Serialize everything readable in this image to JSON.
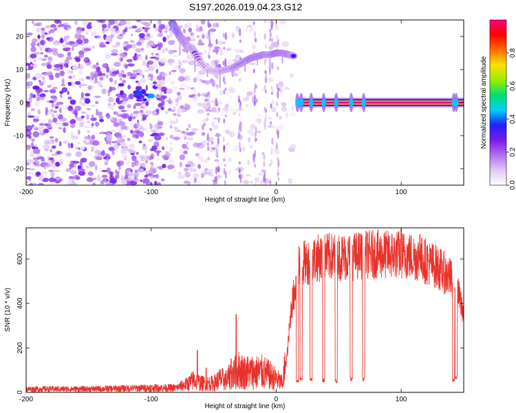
{
  "title": "S197.2026.019.04.23.G12",
  "colors": {
    "snr_line": "#e8322b",
    "colormap": [
      "#ffffff",
      "#e0c8f5",
      "#b070f0",
      "#7a1be8",
      "#2020ff",
      "#00d0ff",
      "#00e070",
      "#9aee00",
      "#ffe000",
      "#ff7000",
      "#ff0000",
      "#ff0080"
    ]
  },
  "chart_data": [
    {
      "type": "heatmap",
      "name": "spectrogram",
      "xlabel": "Height of straight line (km)",
      "ylabel": "Frequency (Hz)",
      "xlim": [
        -200,
        150
      ],
      "ylim": [
        -25,
        25
      ],
      "xticks": [
        -200,
        -100,
        0,
        100
      ],
      "xtick_labels": [
        "-200",
        "-100",
        "0",
        "100"
      ],
      "yticks": [
        -20,
        -10,
        0,
        10,
        20
      ],
      "ytick_labels": [
        "-20",
        "-10",
        "0",
        "10",
        "20"
      ],
      "colorbar": {
        "label": "Normalized spectral amplitude",
        "range": [
          0,
          1
        ],
        "ticks": [
          0.0,
          0.2,
          0.4,
          0.6,
          0.8
        ],
        "tick_labels": [
          "0.0",
          "0.2",
          "0.4",
          "0.6",
          "0.8"
        ]
      },
      "ridge": {
        "description_free_trace": true,
        "x": [
          -83,
          -80,
          -77,
          -74,
          -71,
          -68,
          -65,
          -60,
          -55,
          -50,
          -45,
          -40,
          -35,
          -30,
          -25,
          -20,
          -15,
          -10,
          -5,
          0,
          5,
          10,
          15
        ],
        "y": [
          24,
          22,
          20,
          18.5,
          17,
          16.5,
          15,
          12,
          10,
          9.5,
          9.5,
          10,
          10.5,
          11.5,
          12.5,
          13.5,
          14,
          14.5,
          14.5,
          15,
          15,
          14.5,
          14
        ],
        "amplitude": [
          0.5,
          0.4,
          0.4,
          0.35,
          0.35,
          0.3,
          0.3,
          0.2,
          0.2,
          0.25,
          0.25,
          0.3,
          0.3,
          0.35,
          0.35,
          0.4,
          0.4,
          0.4,
          0.35,
          0.45,
          0.4,
          0.4,
          0.3
        ]
      },
      "carrier": {
        "y": 0,
        "x_start": 17,
        "x_end": 150,
        "amplitude": 1.0
      },
      "cluster": {
        "x": -105,
        "y": 2,
        "amplitude": 0.4
      }
    },
    {
      "type": "line",
      "name": "snr",
      "xlabel": "Height of straight line (km)",
      "ylabel": "SNR (10 * v/v)",
      "xlim": [
        -200,
        150
      ],
      "ylim": [
        0,
        740
      ],
      "xticks": [
        -200,
        -100,
        0,
        100
      ],
      "xtick_labels": [
        "-200",
        "-100",
        "0",
        "100"
      ],
      "yticks": [
        0,
        200,
        400,
        600
      ],
      "ytick_labels": [
        "0",
        "200",
        "400",
        "600"
      ],
      "envelope": {
        "x": [
          -200,
          -150,
          -100,
          -80,
          -75,
          -70,
          -66,
          -60,
          -50,
          -45,
          -40,
          -35,
          -30,
          -25,
          -20,
          -10,
          0,
          5,
          9,
          12,
          15,
          18,
          22,
          30,
          40,
          50,
          60,
          70,
          80,
          90,
          100,
          110,
          120,
          130,
          140,
          145,
          150
        ],
        "y": [
          15,
          15,
          20,
          20,
          30,
          40,
          55,
          40,
          40,
          60,
          55,
          80,
          100,
          90,
          90,
          90,
          60,
          40,
          180,
          380,
          460,
          560,
          580,
          600,
          610,
          610,
          610,
          620,
          620,
          620,
          620,
          610,
          590,
          560,
          510,
          450,
          360
        ]
      },
      "spikes": [
        {
          "x": -63,
          "y": 190
        },
        {
          "x": -56,
          "y": 110
        },
        {
          "x": -32,
          "y": 350
        },
        {
          "x": -36,
          "y": 150
        },
        {
          "x": 100,
          "y": 735
        },
        {
          "x": 115,
          "y": 710
        }
      ],
      "dropouts": [
        {
          "x": 17,
          "y": 40
        },
        {
          "x": 20,
          "y": 50
        },
        {
          "x": 28,
          "y": 50
        },
        {
          "x": 38,
          "y": 45
        },
        {
          "x": 48,
          "y": 40
        },
        {
          "x": 60,
          "y": 50
        },
        {
          "x": 70,
          "y": 50
        },
        {
          "x": 142,
          "y": 45
        },
        {
          "x": 144,
          "y": 60
        }
      ]
    }
  ]
}
